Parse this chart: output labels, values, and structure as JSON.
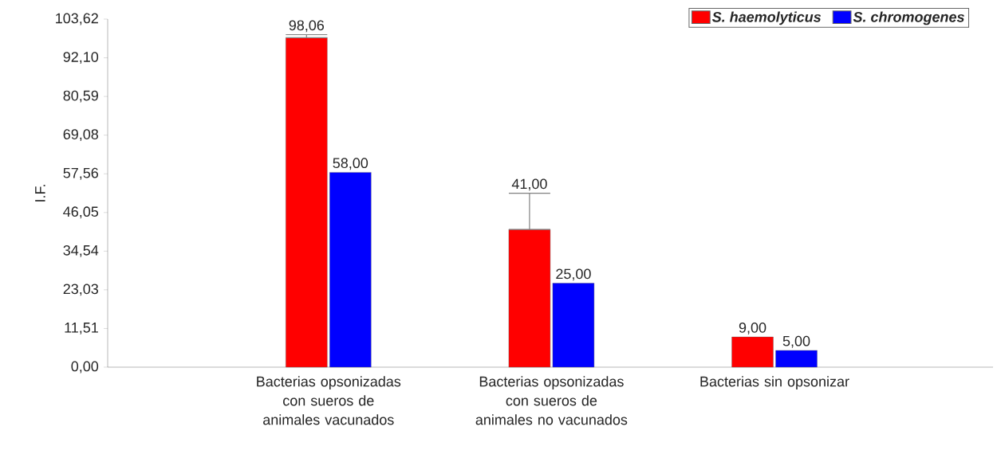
{
  "chart_data": {
    "type": "bar",
    "ylabel": "I.F.",
    "categories": [
      "Bacterias opsonizadas con sueros de animales vacunados",
      "Bacterias opsonizadas con sueros de animales no vacunados",
      "Bacterias sin opsonizar"
    ],
    "series": [
      {
        "name": "S. haemolyticus",
        "color": "#ff0000",
        "values": [
          98.06,
          41,
          9
        ],
        "value_labels": [
          "98,06",
          "41,00",
          "9,00"
        ],
        "errors": [
          [
            98.06,
            99.0
          ],
          [
            41,
            51.8
          ],
          null
        ]
      },
      {
        "name": "S. chromogenes",
        "color": "#0000ff",
        "values": [
          58,
          25,
          5
        ],
        "value_labels": [
          "58,00",
          "25,00",
          "5,00"
        ]
      }
    ],
    "ylim": [
      0,
      103.62
    ],
    "yticks": [
      {
        "value": 0,
        "label": "0,00"
      },
      {
        "value": 11.51,
        "label": "11,51"
      },
      {
        "value": 23.03,
        "label": "23,03"
      },
      {
        "value": 34.54,
        "label": "34,54"
      },
      {
        "value": 46.05,
        "label": "46,05"
      },
      {
        "value": 57.56,
        "label": "57,56"
      },
      {
        "value": 69.08,
        "label": "69,08"
      },
      {
        "value": 80.59,
        "label": "80,59"
      },
      {
        "value": 92.1,
        "label": "92,10"
      },
      {
        "value": 103.62,
        "label": "103,62"
      }
    ],
    "grid": false,
    "legend": "top right"
  }
}
